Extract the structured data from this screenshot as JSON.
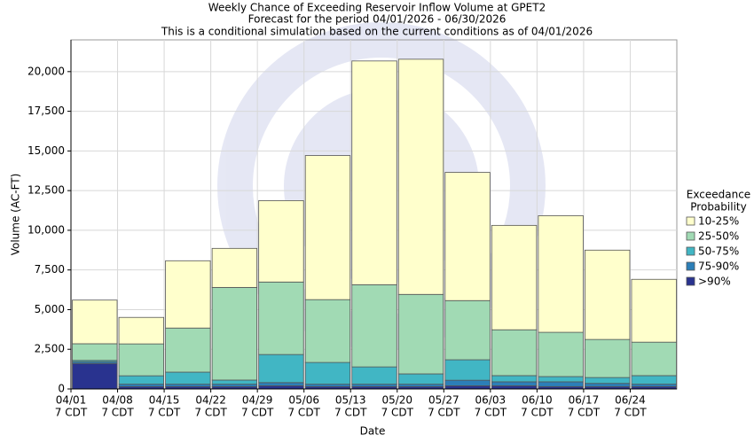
{
  "chart_data": {
    "type": "stacked_bar",
    "title": "Weekly Chance of Exceeding Reservoir Inflow Volume at GPET2",
    "subtitle": "Forecast for the period 04/01/2026 - 06/30/2026",
    "subtitle2": "This is a conditional simulation based on the current conditions as of 04/01/2026",
    "x_label": "Date",
    "y_label": "Volume (AC-FT)",
    "legend_title": [
      "Exceedance",
      "Probability"
    ],
    "legend_position": "right",
    "grid": true,
    "categories": [
      "04/01",
      "04/08",
      "04/15",
      "04/22",
      "04/29",
      "05/06",
      "05/13",
      "05/20",
      "05/27",
      "06/03",
      "06/10",
      "06/17",
      "06/24"
    ],
    "category_time": "7 CDT",
    "ylim": [
      0,
      22000
    ],
    "yticks": [
      0,
      {
        "value": 2500,
        "label": "2,500"
      },
      {
        "value": 5000,
        "label": "5,000"
      },
      {
        "value": 7500,
        "label": "7,500"
      },
      {
        "value": 10000,
        "label": "10,000"
      },
      {
        "value": 12500,
        "label": "12,500"
      },
      {
        "value": 15000,
        "label": "15,000"
      },
      {
        "value": 17500,
        "label": "17,500"
      },
      {
        "value": 20000,
        "label": "20,000"
      }
    ],
    "series": [
      {
        "name": ">90%",
        "color": "#29338f",
        "values": [
          1600,
          150,
          150,
          150,
          200,
          150,
          150,
          150,
          200,
          200,
          150,
          150,
          150
        ]
      },
      {
        "name": "75-90%",
        "color": "#2c7fb8",
        "values": [
          100,
          150,
          150,
          150,
          200,
          150,
          150,
          150,
          350,
          250,
          300,
          200,
          150
        ]
      },
      {
        "name": "50-75%",
        "color": "#41b6c4",
        "values": [
          100,
          530,
          760,
          260,
          1770,
          1370,
          1090,
          650,
          1290,
          390,
          330,
          370,
          540
        ]
      },
      {
        "name": "25-50%",
        "color": "#a1dab4",
        "values": [
          1050,
          2010,
          2780,
          5840,
          4570,
          3960,
          5180,
          5010,
          3730,
          2890,
          2790,
          2400,
          2110
        ]
      },
      {
        "name": "10-25%",
        "color": "#ffffcc",
        "values": [
          2750,
          1670,
          4240,
          2460,
          5130,
          9080,
          14100,
          14820,
          8080,
          6580,
          7350,
          5630,
          3960
        ]
      }
    ]
  }
}
